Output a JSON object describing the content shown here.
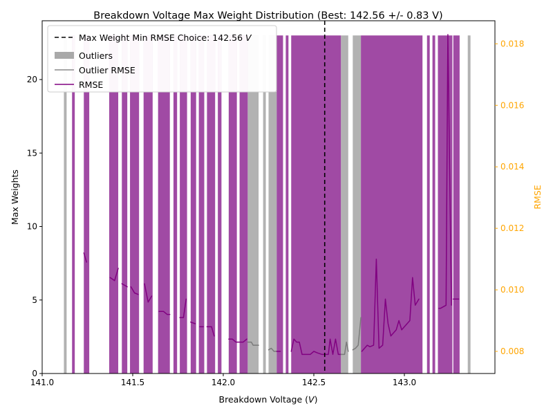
{
  "chart_data": {
    "type": "bar",
    "title": "Breakdown Voltage Max Weight Distribution (Best: 142.56 +/- 0.83 V)",
    "xlabel_prefix": "Breakdown Voltage (",
    "xlabel_unit": "V",
    "xlabel_suffix": ")",
    "ylabel": "Max Weights",
    "y2label": "RMSE",
    "xlim": [
      141.0,
      143.5
    ],
    "ylim": [
      0,
      24
    ],
    "y2lim": [
      0.00728,
      0.01875
    ],
    "x_ticks": [
      "141.0",
      "141.5",
      "142.0",
      "142.5",
      "143.0"
    ],
    "y_ticks": [
      "0",
      "5",
      "10",
      "15",
      "20"
    ],
    "y2_ticks": [
      "0.008",
      "0.010",
      "0.012",
      "0.014",
      "0.016",
      "0.018"
    ],
    "colors": {
      "weights": "#a04aa4",
      "weights_light": "#efd8ec",
      "outliers": "#b2b2b2",
      "outliers_light": "#efefef",
      "rmse": "#800080",
      "outlier_rmse": "#7a7a7a",
      "best_line": "#000000",
      "y2_axis": "#ffa500"
    },
    "best_value": 142.56,
    "legend_position": "upper-left",
    "legend": {
      "best_prefix": "Max Weight Min RMSE Choice: 142.56 ",
      "best_unit": "V",
      "outliers": "Outliers",
      "outlier_rmse": "Outlier RMSE",
      "rmse": "RMSE"
    },
    "bar_height": 23,
    "bars": [
      {
        "x0": 141.12,
        "x1": 141.135,
        "kind": "outlier"
      },
      {
        "x0": 141.165,
        "x1": 141.18,
        "kind": "weight"
      },
      {
        "x0": 141.23,
        "x1": 141.26,
        "kind": "weight"
      },
      {
        "x0": 141.37,
        "x1": 141.42,
        "kind": "weight"
      },
      {
        "x0": 141.44,
        "x1": 141.47,
        "kind": "weight"
      },
      {
        "x0": 141.485,
        "x1": 141.535,
        "kind": "weight"
      },
      {
        "x0": 141.56,
        "x1": 141.61,
        "kind": "weight"
      },
      {
        "x0": 141.64,
        "x1": 141.705,
        "kind": "weight"
      },
      {
        "x0": 141.725,
        "x1": 141.745,
        "kind": "weight"
      },
      {
        "x0": 141.76,
        "x1": 141.8,
        "kind": "weight"
      },
      {
        "x0": 141.82,
        "x1": 141.85,
        "kind": "weight"
      },
      {
        "x0": 141.865,
        "x1": 141.895,
        "kind": "weight"
      },
      {
        "x0": 141.91,
        "x1": 141.955,
        "kind": "weight"
      },
      {
        "x0": 141.97,
        "x1": 141.99,
        "kind": "weight"
      },
      {
        "x0": 142.03,
        "x1": 142.075,
        "kind": "weight"
      },
      {
        "x0": 142.09,
        "x1": 142.135,
        "kind": "weight"
      },
      {
        "x0": 142.135,
        "x1": 142.195,
        "kind": "outlier"
      },
      {
        "x0": 142.22,
        "x1": 142.235,
        "kind": "outlier"
      },
      {
        "x0": 142.25,
        "x1": 142.295,
        "kind": "outlier"
      },
      {
        "x0": 142.295,
        "x1": 142.33,
        "kind": "weight"
      },
      {
        "x0": 142.345,
        "x1": 142.36,
        "kind": "weight"
      },
      {
        "x0": 142.375,
        "x1": 142.65,
        "kind": "weight"
      },
      {
        "x0": 142.65,
        "x1": 142.69,
        "kind": "outlier"
      },
      {
        "x0": 142.715,
        "x1": 142.76,
        "kind": "outlier"
      },
      {
        "x0": 142.76,
        "x1": 143.1,
        "kind": "weight"
      },
      {
        "x0": 143.125,
        "x1": 143.14,
        "kind": "weight"
      },
      {
        "x0": 143.155,
        "x1": 143.17,
        "kind": "weight"
      },
      {
        "x0": 143.185,
        "x1": 143.265,
        "kind": "weight"
      },
      {
        "x0": 143.27,
        "x1": 143.305,
        "kind": "weight"
      },
      {
        "x0": 143.35,
        "x1": 143.365,
        "kind": "outlier"
      }
    ],
    "rmse_segments": [
      {
        "kind": "rmse",
        "points": [
          [
            141.23,
            0.0112
          ],
          [
            141.245,
            0.0109
          ]
        ]
      },
      {
        "kind": "rmse",
        "points": [
          [
            141.375,
            0.0104
          ],
          [
            141.4,
            0.0103
          ],
          [
            141.42,
            0.0107
          ]
        ]
      },
      {
        "kind": "rmse",
        "points": [
          [
            141.44,
            0.0102
          ],
          [
            141.47,
            0.0101
          ]
        ]
      },
      {
        "kind": "rmse",
        "points": [
          [
            141.49,
            0.0101
          ],
          [
            141.51,
            0.0099
          ],
          [
            141.53,
            0.00985
          ]
        ]
      },
      {
        "kind": "rmse",
        "points": [
          [
            141.565,
            0.0102
          ],
          [
            141.585,
            0.0096
          ],
          [
            141.605,
            0.0098
          ]
        ]
      },
      {
        "kind": "rmse",
        "points": [
          [
            141.645,
            0.0093
          ],
          [
            141.67,
            0.0093
          ],
          [
            141.69,
            0.0092
          ],
          [
            141.705,
            0.0092
          ]
        ]
      },
      {
        "kind": "rmse",
        "points": [
          [
            141.76,
            0.0091
          ],
          [
            141.78,
            0.0091
          ],
          [
            141.795,
            0.0097
          ]
        ]
      },
      {
        "kind": "rmse",
        "points": [
          [
            141.82,
            0.00895
          ],
          [
            141.845,
            0.0089
          ]
        ]
      },
      {
        "kind": "rmse",
        "points": [
          [
            141.87,
            0.0088
          ],
          [
            141.89,
            0.0088
          ]
        ]
      },
      {
        "kind": "rmse",
        "points": [
          [
            141.91,
            0.0088
          ],
          [
            141.935,
            0.0088
          ],
          [
            141.95,
            0.0085
          ]
        ]
      },
      {
        "kind": "rmse",
        "points": [
          [
            142.03,
            0.0084
          ],
          [
            142.05,
            0.0084
          ],
          [
            142.07,
            0.0083
          ],
          [
            142.09,
            0.0083
          ],
          [
            142.11,
            0.0083
          ],
          [
            142.13,
            0.0084
          ]
        ]
      },
      {
        "kind": "outlier",
        "points": [
          [
            142.135,
            0.0083
          ],
          [
            142.155,
            0.0083
          ],
          [
            142.165,
            0.0082
          ],
          [
            142.195,
            0.0082
          ]
        ]
      },
      {
        "kind": "outlier",
        "points": [
          [
            142.25,
            0.00805
          ],
          [
            142.265,
            0.0081
          ],
          [
            142.28,
            0.008
          ],
          [
            142.295,
            0.008
          ]
        ]
      },
      {
        "kind": "rmse",
        "points": [
          [
            142.295,
            0.008
          ],
          [
            142.315,
            0.008
          ]
        ]
      },
      {
        "kind": "rmse",
        "points": [
          [
            142.375,
            0.008
          ],
          [
            142.39,
            0.0084
          ],
          [
            142.405,
            0.0083
          ],
          [
            142.42,
            0.0083
          ],
          [
            142.435,
            0.0079
          ],
          [
            142.46,
            0.0079
          ],
          [
            142.48,
            0.0079
          ],
          [
            142.5,
            0.008
          ],
          [
            142.52,
            0.00795
          ],
          [
            142.545,
            0.0079
          ],
          [
            142.565,
            0.0079
          ],
          [
            142.58,
            0.0079
          ],
          [
            142.59,
            0.0084
          ],
          [
            142.605,
            0.0079
          ],
          [
            142.62,
            0.0084
          ],
          [
            142.635,
            0.0079
          ],
          [
            142.65,
            0.0079
          ]
        ]
      },
      {
        "kind": "outlier",
        "points": [
          [
            142.65,
            0.0079
          ],
          [
            142.67,
            0.0079
          ],
          [
            142.68,
            0.0083
          ],
          [
            142.69,
            0.008
          ]
        ]
      },
      {
        "kind": "outlier",
        "points": [
          [
            142.715,
            0.00805
          ],
          [
            142.73,
            0.0081
          ],
          [
            142.745,
            0.0082
          ],
          [
            142.76,
            0.0091
          ]
        ]
      },
      {
        "kind": "rmse",
        "points": [
          [
            142.765,
            0.008
          ],
          [
            142.78,
            0.0081
          ],
          [
            142.795,
            0.0082
          ],
          [
            142.81,
            0.00815
          ],
          [
            142.83,
            0.0082
          ],
          [
            142.845,
            0.011
          ],
          [
            142.86,
            0.0081
          ],
          [
            142.88,
            0.0082
          ],
          [
            142.895,
            0.0097
          ],
          [
            142.91,
            0.0089
          ],
          [
            142.925,
            0.0085
          ],
          [
            142.94,
            0.0086
          ],
          [
            142.955,
            0.0087
          ],
          [
            142.97,
            0.009
          ],
          [
            142.985,
            0.0087
          ],
          [
            143.0,
            0.0088
          ],
          [
            143.015,
            0.0089
          ],
          [
            143.03,
            0.009
          ],
          [
            143.045,
            0.0104
          ],
          [
            143.06,
            0.0095
          ],
          [
            143.08,
            0.0097
          ]
        ]
      },
      {
        "kind": "rmse",
        "points": [
          [
            143.19,
            0.0094
          ],
          [
            143.2,
            0.0094
          ],
          [
            143.23,
            0.0095
          ],
          [
            143.24,
            0.0183
          ],
          [
            143.26,
            0.0095
          ]
        ]
      },
      {
        "kind": "rmse",
        "points": [
          [
            143.27,
            0.0097
          ],
          [
            143.3,
            0.0097
          ]
        ]
      }
    ]
  }
}
